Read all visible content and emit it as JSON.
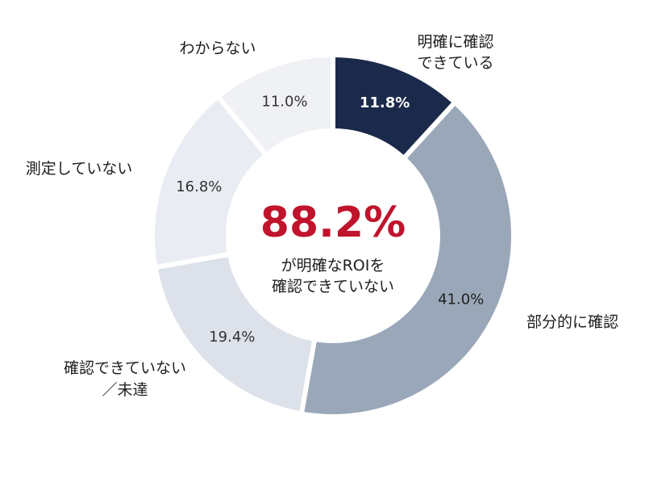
{
  "chart_data": {
    "type": "pie",
    "variant": "donut",
    "start": "top",
    "direction": "clockwise",
    "slices": [
      {
        "category": [
          "明確に確認",
          "できている"
        ],
        "value": 11.8,
        "value_label": "11.8%",
        "color": "#1b2a4a",
        "label_color": "#ffffff",
        "label_bold": true
      },
      {
        "category": [
          "部分的に確認"
        ],
        "value": 41.0,
        "value_label": "41.0%",
        "color": "#9aa7b9",
        "label_color": "#1f1f1f",
        "label_bold": false
      },
      {
        "category": [
          "確認できていない",
          "／未達"
        ],
        "value": 19.4,
        "value_label": "19.4%",
        "color": "#dde1ea",
        "label_color": "#333333",
        "label_bold": false
      },
      {
        "category": [
          "測定していない"
        ],
        "value": 16.8,
        "value_label": "16.8%",
        "color": "#e9ecf2",
        "label_color": "#333333",
        "label_bold": false
      },
      {
        "category": [
          "わからない"
        ],
        "value": 11.0,
        "value_label": "11.0%",
        "color": "#eff1f5",
        "label_color": "#333333",
        "label_bold": false
      }
    ],
    "center": {
      "value": "88.2%",
      "value_color": "#c0142c",
      "caption": [
        "が明確なROIを",
        "確認できていない"
      ]
    }
  }
}
